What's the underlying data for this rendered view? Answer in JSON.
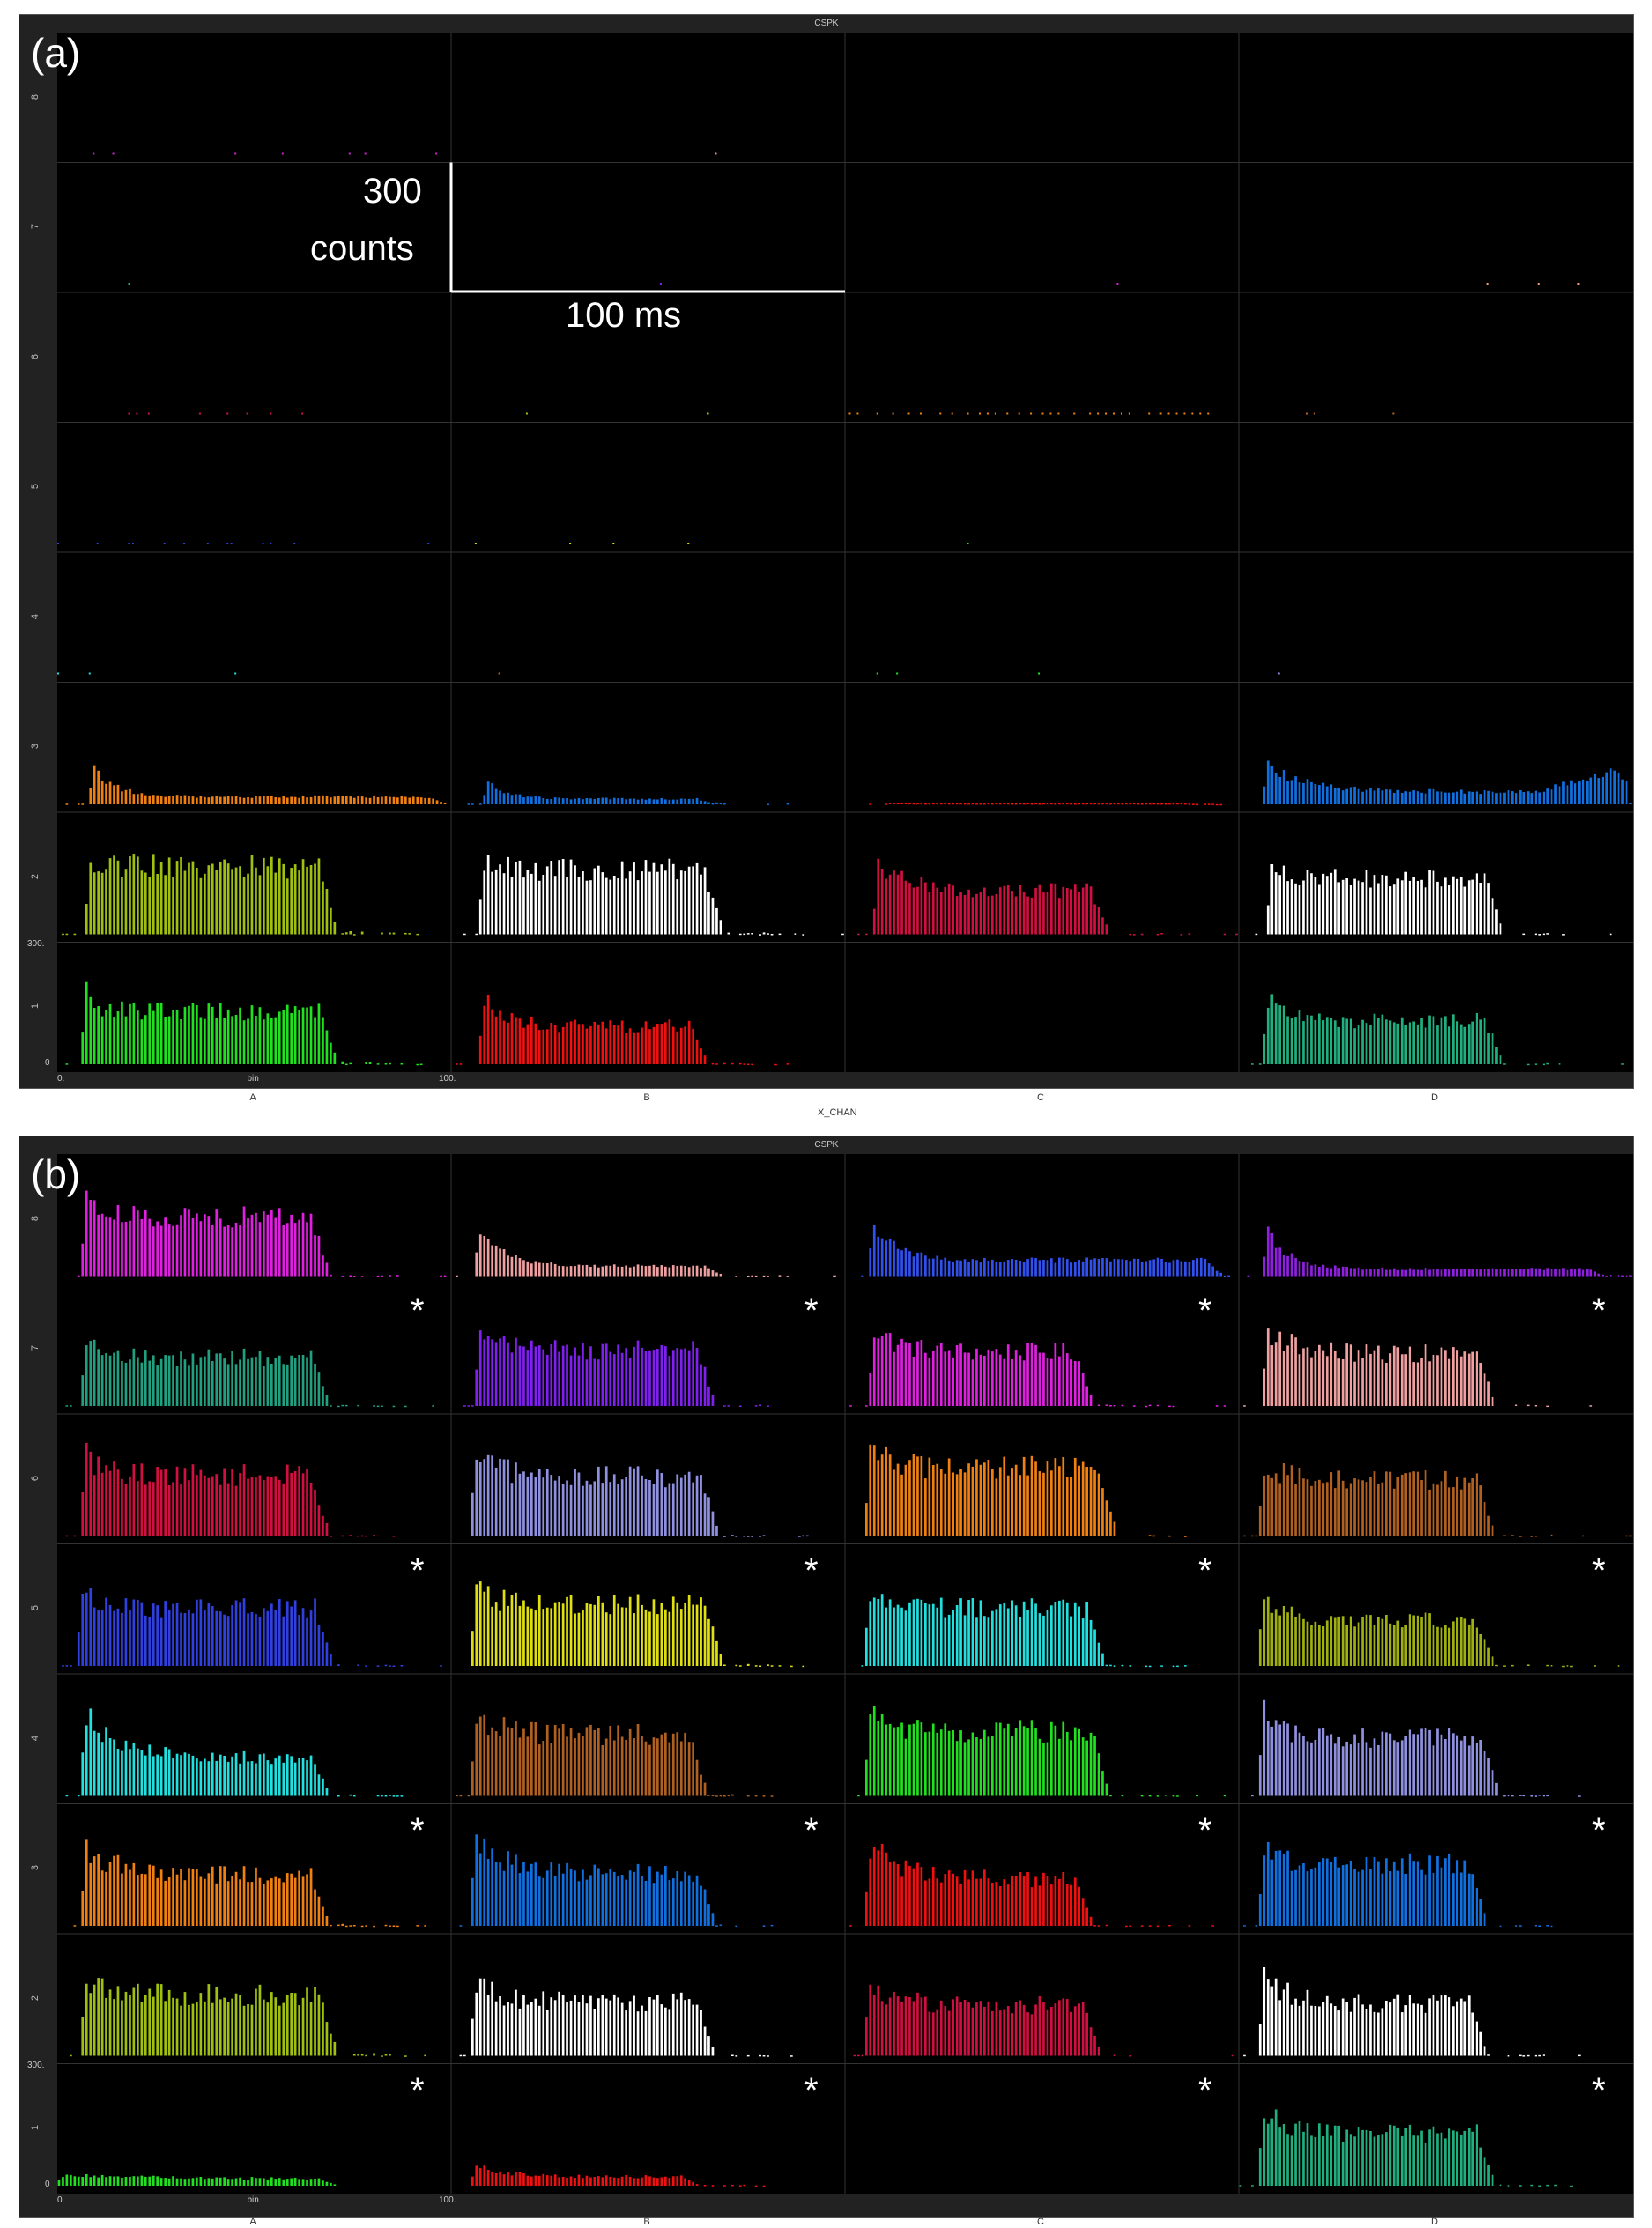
{
  "chart_data": [
    {
      "type": "bar",
      "panel_label": "(a)",
      "title": "CSPK",
      "xlabel": "X_CHAN",
      "columns": [
        "A",
        "B",
        "C",
        "D"
      ],
      "rows": [
        "8",
        "7",
        "6",
        "5",
        "4",
        "3",
        "2",
        "1"
      ],
      "ylim": [
        0,
        300
      ],
      "xlim": [
        0,
        100
      ],
      "y_tick_labels": [
        "300.",
        "0"
      ],
      "x_tick_labels": [
        "0.",
        "bin",
        "100."
      ],
      "scale_bar": {
        "counts_value": "300",
        "counts_label": "counts",
        "time_label": "100 ms"
      },
      "asterisks": [],
      "panels": {
        "8": {
          "A": {
            "color": "#d020d0",
            "dots": [
              9,
              14,
              45,
              57,
              74,
              78,
              96
            ]
          },
          "B": {
            "color": "#f09090",
            "dots": [
              67
            ]
          }
        },
        "7": {
          "A": {
            "color": "#20a080",
            "dots": [
              18
            ]
          },
          "B": {
            "color": "#8020f0",
            "dots": [
              53
            ]
          },
          "C": {
            "color": "#d020d0",
            "dots": [
              69
            ]
          },
          "D": {
            "color": "#f0a070",
            "dots": [
              63,
              76,
              86
            ]
          }
        },
        "6": {
          "A": {
            "color": "#d01040",
            "dots": [
              18,
              20,
              23,
              36,
              43,
              48,
              54,
              62
            ]
          },
          "B": {
            "color": "#a0c010",
            "dots": [
              19,
              65
            ]
          },
          "C": {
            "color": "#f08010",
            "dots": [
              1,
              3,
              8,
              12,
              16,
              19,
              24,
              27,
              31,
              34,
              36,
              38,
              41,
              44,
              47,
              50,
              52,
              54,
              58,
              62,
              64,
              66,
              68,
              70,
              72,
              77,
              80,
              82,
              84,
              86,
              88,
              90,
              92
            ]
          },
          "D": {
            "color": "#b06020",
            "dots": [
              17,
              19,
              39
            ]
          }
        },
        "5": {
          "A": {
            "color": "#3040e0",
            "dots": [
              0,
              10,
              18,
              19,
              27,
              32,
              38,
              43,
              44,
              52,
              54,
              60,
              94
            ]
          },
          "B": {
            "color": "#e0e010",
            "dots": [
              6,
              30,
              41,
              60
            ]
          },
          "C": {
            "color": "#20e020",
            "dots": [
              31
            ]
          }
        },
        "4": {
          "A": {
            "color": "#20e0e0",
            "dots": [
              0,
              8,
              45
            ]
          },
          "B": {
            "color": "#b06020",
            "dots": [
              12
            ]
          },
          "C": {
            "color": "#20e020",
            "dots": [
              8,
              13,
              49
            ]
          },
          "D": {
            "color": "#9090e0",
            "dots": [
              10
            ]
          }
        },
        "3": {
          "A": {
            "color": "#f08010",
            "onset": 8,
            "peak": 110,
            "plateau": 22,
            "tau": 6,
            "end": 98,
            "tail": 8
          },
          "B": {
            "color": "#1070e0",
            "onset": 8,
            "peak": 70,
            "plateau": 16,
            "tau": 5,
            "end": 66,
            "tail": 4
          },
          "C": {
            "color": "#f01010",
            "onset": 10,
            "peak": 5,
            "plateau": 3,
            "tau": 5,
            "end": 90,
            "tail": 2
          },
          "D": {
            "color": "#1070e0",
            "onset": 6,
            "peak": 120,
            "plateau": 36,
            "tau": 10,
            "end": 98,
            "tail": 10,
            "late_rise": [
              75,
              75
            ]
          }
        },
        "2": {
          "A": {
            "color": "#a0c010",
            "onset": 7,
            "peak": 215,
            "plateau": 195,
            "tau": 6,
            "end": 70,
            "tail": 15
          },
          "B": {
            "color": "#ffffff",
            "onset": 7,
            "peak": 210,
            "plateau": 185,
            "tau": 6,
            "end": 68,
            "tail": 6
          },
          "C": {
            "color": "#d01040",
            "onset": 7,
            "peak": 195,
            "plateau": 125,
            "tau": 8,
            "end": 66,
            "tail": 4
          },
          "D": {
            "color": "#ffffff",
            "onset": 7,
            "peak": 190,
            "plateau": 160,
            "tau": 8,
            "end": 66,
            "tail": 4
          }
        },
        "1": {
          "A": {
            "color": "#20e020",
            "onset": 6,
            "peak": 235,
            "plateau": 150,
            "tau": 3,
            "end": 70,
            "tail": 12
          },
          "B": {
            "color": "#f01010",
            "onset": 7,
            "peak": 200,
            "plateau": 110,
            "tau": 5,
            "end": 64,
            "tail": 3
          },
          "D": {
            "color": "#20b080",
            "onset": 6,
            "peak": 210,
            "plateau": 125,
            "tau": 5,
            "end": 66,
            "tail": 3
          }
        }
      }
    },
    {
      "type": "bar",
      "panel_label": "(b)",
      "title": "CSPK",
      "columns": [
        "A",
        "B",
        "C",
        "D"
      ],
      "rows": [
        "8",
        "7",
        "6",
        "5",
        "4",
        "3",
        "2",
        "1"
      ],
      "ylim": [
        0,
        300
      ],
      "xlim": [
        0,
        100
      ],
      "y_tick_labels": [
        "300.",
        "0"
      ],
      "x_tick_labels": [
        "0.",
        "bin",
        "100."
      ],
      "asterisk_symbol": "*",
      "asterisks": [
        "7",
        "5",
        "3",
        "1"
      ],
      "panels": {
        "8": {
          "A": {
            "color": "#e020e0",
            "onset": 6,
            "peak": 245,
            "plateau": 170,
            "tau": 3,
            "end": 68,
            "tail": 5
          },
          "B": {
            "color": "#f0a0a0",
            "onset": 6,
            "peak": 155,
            "plateau": 28,
            "tau": 6,
            "end": 68,
            "tail": 4
          },
          "C": {
            "color": "#3050f0",
            "onset": 6,
            "peak": 160,
            "plateau": 45,
            "tau": 6,
            "end": 95,
            "tail": 5
          },
          "D": {
            "color": "#9020e0",
            "onset": 6,
            "peak": 140,
            "plateau": 20,
            "tau": 6,
            "end": 92,
            "tail": 4
          }
        },
        "7": {
          "A": {
            "color": "#20a080",
            "onset": 6,
            "peak": 195,
            "plateau": 140,
            "tau": 4,
            "end": 68,
            "tail": 4
          },
          "B": {
            "color": "#8020f0",
            "onset": 6,
            "peak": 205,
            "plateau": 160,
            "tau": 6,
            "end": 66,
            "tail": 4
          },
          "C": {
            "color": "#e020e0",
            "onset": 6,
            "peak": 235,
            "plateau": 155,
            "tau": 6,
            "end": 62,
            "tail": 5
          },
          "D": {
            "color": "#f0a0a0",
            "onset": 6,
            "peak": 230,
            "plateau": 150,
            "tau": 7,
            "end": 64,
            "tail": 5
          }
        },
        "6": {
          "A": {
            "color": "#d01040",
            "onset": 6,
            "peak": 240,
            "plateau": 175,
            "tau": 5,
            "end": 68,
            "tail": 4
          },
          "B": {
            "color": "#9090e0",
            "onset": 5,
            "peak": 245,
            "plateau": 170,
            "tau": 6,
            "end": 67,
            "tail": 5
          },
          "C": {
            "color": "#f08010",
            "onset": 5,
            "peak": 255,
            "plateau": 195,
            "tau": 6,
            "end": 68,
            "tail": 6
          },
          "D": {
            "color": "#b06020",
            "onset": 5,
            "peak": 215,
            "plateau": 160,
            "tau": 6,
            "end": 64,
            "tail": 5
          }
        },
        "5": {
          "A": {
            "color": "#3040e0",
            "onset": 5,
            "peak": 225,
            "plateau": 165,
            "tau": 5,
            "end": 69,
            "tail": 4
          },
          "B": {
            "color": "#e0e010",
            "onset": 5,
            "peak": 220,
            "plateau": 175,
            "tau": 6,
            "end": 68,
            "tail": 5
          },
          "C": {
            "color": "#20e0e0",
            "onset": 5,
            "peak": 225,
            "plateau": 165,
            "tau": 5,
            "end": 65,
            "tail": 5
          },
          "D": {
            "color": "#a0b010",
            "onset": 5,
            "peak": 205,
            "plateau": 130,
            "tau": 5,
            "end": 64,
            "tail": 4
          }
        },
        "4": {
          "A": {
            "color": "#20e0e0",
            "onset": 6,
            "peak": 245,
            "plateau": 110,
            "tau": 8,
            "end": 68,
            "tail": 4
          },
          "B": {
            "color": "#b06020",
            "onset": 5,
            "peak": 240,
            "plateau": 175,
            "tau": 6,
            "end": 64,
            "tail": 4
          },
          "C": {
            "color": "#20e020",
            "onset": 5,
            "peak": 235,
            "plateau": 185,
            "tau": 6,
            "end": 66,
            "tail": 5
          },
          "D": {
            "color": "#9090e0",
            "onset": 5,
            "peak": 250,
            "plateau": 165,
            "tau": 6,
            "end": 65,
            "tail": 4
          }
        },
        "3": {
          "A": {
            "color": "#f08010",
            "onset": 6,
            "peak": 235,
            "plateau": 145,
            "tau": 8,
            "end": 68,
            "tail": 4
          },
          "B": {
            "color": "#1070e0",
            "onset": 5,
            "peak": 260,
            "plateau": 150,
            "tau": 8,
            "end": 66,
            "tail": 4
          },
          "C": {
            "color": "#f01010",
            "onset": 5,
            "peak": 245,
            "plateau": 135,
            "tau": 8,
            "end": 62,
            "tail": 4
          },
          "D": {
            "color": "#1070e0",
            "onset": 5,
            "peak": 215,
            "plateau": 180,
            "tau": 6,
            "end": 62,
            "tail": 3
          }
        },
        "2": {
          "A": {
            "color": "#a0c010",
            "onset": 6,
            "peak": 225,
            "plateau": 175,
            "tau": 5,
            "end": 70,
            "tail": 10
          },
          "B": {
            "color": "#ffffff",
            "onset": 5,
            "peak": 220,
            "plateau": 155,
            "tau": 6,
            "end": 66,
            "tail": 4
          },
          "C": {
            "color": "#d01040",
            "onset": 5,
            "peak": 215,
            "plateau": 145,
            "tau": 7,
            "end": 64,
            "tail": 4
          },
          "D": {
            "color": "#ffffff",
            "onset": 5,
            "peak": 240,
            "plateau": 150,
            "tau": 6,
            "end": 62,
            "tail": 4
          }
        },
        "1": {
          "A": {
            "color": "#20e020",
            "onset": 0,
            "peak": 30,
            "plateau": 18,
            "tau": 40,
            "end": 70,
            "tail": 0
          },
          "B": {
            "color": "#f01010",
            "onset": 5,
            "peak": 60,
            "plateau": 26,
            "tau": 8,
            "end": 62,
            "tail": 3
          },
          "D": {
            "color": "#20b080",
            "onset": 5,
            "peak": 220,
            "plateau": 150,
            "tau": 6,
            "end": 64,
            "tail": 3
          }
        }
      }
    }
  ]
}
